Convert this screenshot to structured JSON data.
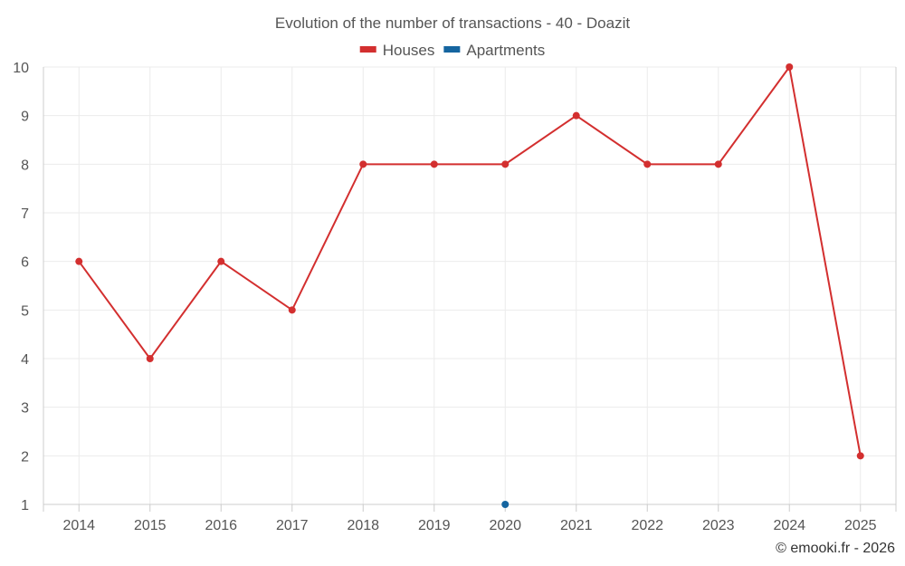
{
  "chart_data": {
    "type": "line",
    "title": "Evolution of the number of transactions - 40 - Doazit",
    "categories": [
      "2014",
      "2015",
      "2016",
      "2017",
      "2018",
      "2019",
      "2020",
      "2021",
      "2022",
      "2023",
      "2024",
      "2025"
    ],
    "ylim": [
      1,
      10
    ],
    "yticks": [
      1,
      2,
      3,
      4,
      5,
      6,
      7,
      8,
      9,
      10
    ],
    "legend_position": "top-center",
    "grid": true,
    "series": [
      {
        "name": "Houses",
        "color": "#d32f2f",
        "values": [
          6,
          4,
          6,
          5,
          8,
          8,
          8,
          9,
          8,
          8,
          10,
          2
        ]
      },
      {
        "name": "Apartments",
        "color": "#1565a0",
        "values": [
          null,
          null,
          null,
          null,
          null,
          null,
          1,
          null,
          null,
          null,
          null,
          null
        ]
      }
    ]
  },
  "credit": "© emooki.fr - 2026"
}
